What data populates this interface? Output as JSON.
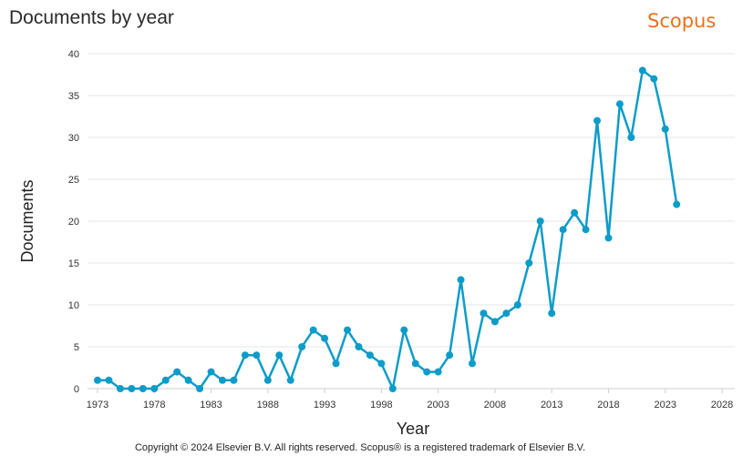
{
  "header": {
    "title": "Documents by year",
    "brand": "Scopus",
    "brand_color": "#e9711c"
  },
  "footer": {
    "copyright": "Copyright © 2024 Elsevier B.V. All rights reserved. Scopus® is a registered trademark of Elsevier B.V."
  },
  "chart_data": {
    "type": "line",
    "title": "Documents by year",
    "xlabel": "Year",
    "ylabel": "Documents",
    "xlim": [
      1973,
      2028
    ],
    "ylim": [
      0,
      40
    ],
    "x_ticks": [
      1973,
      1978,
      1983,
      1988,
      1993,
      1998,
      2003,
      2008,
      2013,
      2018,
      2023,
      2028
    ],
    "y_ticks": [
      0,
      5,
      10,
      15,
      20,
      25,
      30,
      35,
      40
    ],
    "grid": true,
    "color": "#0d9cc9",
    "series": [
      {
        "x": [
          1973,
          1974,
          1975,
          1976,
          1977,
          1978,
          1979,
          1980,
          1981,
          1982,
          1983,
          1984,
          1985,
          1986,
          1987,
          1988,
          1989,
          1990,
          1991,
          1992,
          1993,
          1994,
          1995,
          1996,
          1997,
          1998,
          1999,
          2000,
          2001,
          2002,
          2003,
          2004,
          2005,
          2006,
          2007,
          2008,
          2009,
          2010,
          2011,
          2012,
          2013,
          2014,
          2015,
          2016,
          2017,
          2018,
          2019,
          2020,
          2021,
          2022,
          2023,
          2024
        ],
        "values": [
          1,
          1,
          0,
          0,
          0,
          0,
          1,
          2,
          1,
          0,
          2,
          1,
          1,
          4,
          4,
          1,
          4,
          1,
          5,
          7,
          6,
          3,
          7,
          5,
          4,
          3,
          0,
          7,
          3,
          2,
          2,
          4,
          13,
          3,
          9,
          8,
          9,
          10,
          15,
          20,
          9,
          19,
          21,
          19,
          32,
          18,
          34,
          30,
          38,
          37,
          31,
          22
        ]
      }
    ]
  }
}
